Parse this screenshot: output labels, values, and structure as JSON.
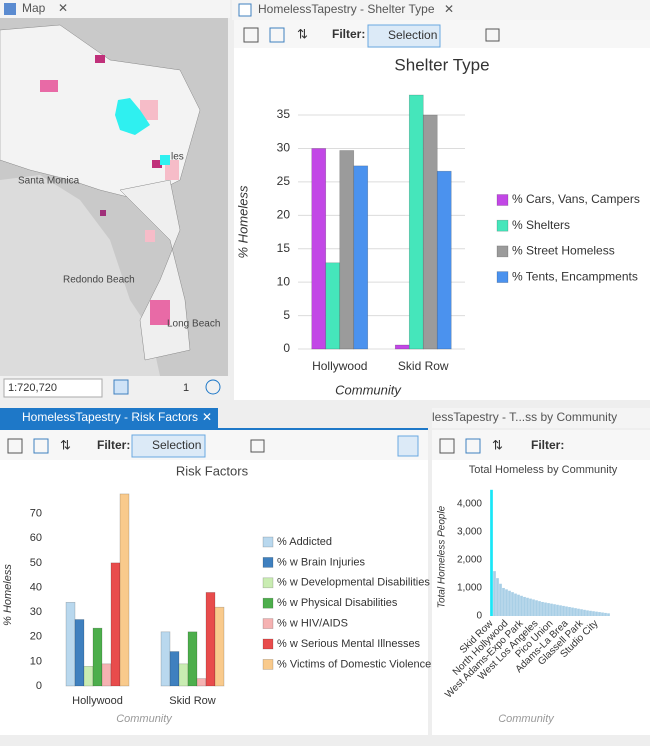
{
  "tabs": {
    "map": "Map",
    "shelter": "HomelessTapestry - Shelter Type",
    "risk": "HomelessTapestry - Risk Factors",
    "community": "lessTapestry - T...ss by Community"
  },
  "toolbar": {
    "filter": "Filter:",
    "selection": "Selection"
  },
  "map": {
    "labels": [
      "Santa Monica",
      "Redondo Beach",
      "Long Beach",
      "les"
    ],
    "scale": "1:720,720",
    "page": "1"
  },
  "chart_data": [
    {
      "type": "bar",
      "title": "Shelter Type",
      "y_label": "% Homeless",
      "x_label": "Community",
      "categories": [
        "Hollywood",
        "Skid Row"
      ],
      "series": [
        {
          "name": "% Cars, Vans, Campers",
          "color": "#c247e6",
          "values": [
            30,
            0.6
          ]
        },
        {
          "name": "% Shelters",
          "color": "#45e6bb",
          "values": [
            12.9,
            38
          ]
        },
        {
          "name": "% Street Homeless",
          "color": "#9b9b9b",
          "values": [
            29.7,
            35
          ]
        },
        {
          "name": "% Tents, Encampments",
          "color": "#4b92ee",
          "values": [
            27.4,
            26.6
          ]
        }
      ],
      "ylim": [
        0,
        38
      ],
      "yticks": [
        0,
        5,
        10,
        15,
        20,
        25,
        30,
        35
      ],
      "grid": true,
      "legend": "right"
    },
    {
      "type": "bar",
      "title": "Risk Factors",
      "y_label": "% Homeless",
      "x_label": "Community",
      "categories": [
        "Hollywood",
        "Skid Row"
      ],
      "series": [
        {
          "name": "% Addicted",
          "color": "#b9d8ee",
          "values": [
            34,
            22
          ]
        },
        {
          "name": "% w Brain Injuries",
          "color": "#3f80bf",
          "values": [
            27,
            14
          ]
        },
        {
          "name": "% w Developmental Disabilities",
          "color": "#c9ecb2",
          "values": [
            8,
            9
          ]
        },
        {
          "name": "% w Physical Disabilities",
          "color": "#4dae4c",
          "values": [
            23.5,
            22
          ]
        },
        {
          "name": "% w HIV/AIDS",
          "color": "#f5b2b2",
          "values": [
            9,
            3
          ]
        },
        {
          "name": "% w Serious Mental Illnesses",
          "color": "#e84c4c",
          "values": [
            50,
            38
          ]
        },
        {
          "name": "% Victims of Domestic Violence",
          "color": "#f9ca8c",
          "values": [
            78,
            32
          ]
        }
      ],
      "ylim": [
        0,
        80
      ],
      "yticks": [
        0,
        10,
        20,
        30,
        40,
        50,
        60,
        70
      ],
      "grid": false,
      "legend": "right"
    },
    {
      "type": "bar",
      "title": "Total Homeless by Community",
      "y_label": "Total Homeless People",
      "x_label": "Community",
      "categories": [
        "Skid Row",
        null,
        null,
        null,
        null,
        "North Hollywood",
        null,
        null,
        null,
        null,
        "West Adams-Expo Park",
        null,
        null,
        null,
        null,
        "West Los Angeles",
        null,
        null,
        null,
        null,
        "Pico Union",
        null,
        null,
        null,
        null,
        "Adams-La Brea",
        null,
        null,
        null,
        null,
        "Glassell Park",
        null,
        null,
        null,
        null,
        "Studio City",
        null,
        null,
        null,
        null
      ],
      "values": [
        4500,
        1600,
        1350,
        1150,
        1000,
        950,
        900,
        850,
        800,
        760,
        720,
        680,
        650,
        620,
        590,
        560,
        530,
        500,
        480,
        460,
        440,
        420,
        400,
        380,
        360,
        340,
        320,
        300,
        280,
        260,
        240,
        220,
        200,
        185,
        170,
        155,
        140,
        125,
        110,
        95
      ],
      "colors": [
        "#19e6f7",
        "#a9cfe6",
        "#a9cfe6",
        "#a9cfe6",
        "#a9cfe6",
        "#a9cfe6",
        "#a9cfe6",
        "#a9cfe6",
        "#a9cfe6",
        "#a9cfe6",
        "#a9cfe6",
        "#a9cfe6",
        "#a9cfe6",
        "#a9cfe6",
        "#a9cfe6",
        "#a9cfe6",
        "#a9cfe6",
        "#a9cfe6",
        "#a9cfe6",
        "#a9cfe6",
        "#a9cfe6",
        "#a9cfe6",
        "#a9cfe6",
        "#a9cfe6",
        "#a9cfe6",
        "#a9cfe6",
        "#a9cfe6",
        "#a9cfe6",
        "#a9cfe6",
        "#a9cfe6",
        "#a9cfe6",
        "#a9cfe6",
        "#a9cfe6",
        "#a9cfe6",
        "#a9cfe6",
        "#a9cfe6",
        "#a9cfe6",
        "#a9cfe6",
        "#a9cfe6",
        "#a9cfe6"
      ],
      "ylim": [
        0,
        4600
      ],
      "yticks": [
        0,
        {
          "value": 1000,
          "label": "1,000"
        },
        {
          "value": 2000,
          "label": "2,000"
        },
        {
          "value": 3000,
          "label": "3,000"
        },
        {
          "value": 4000,
          "label": "4,000"
        }
      ],
      "grid": false
    }
  ]
}
